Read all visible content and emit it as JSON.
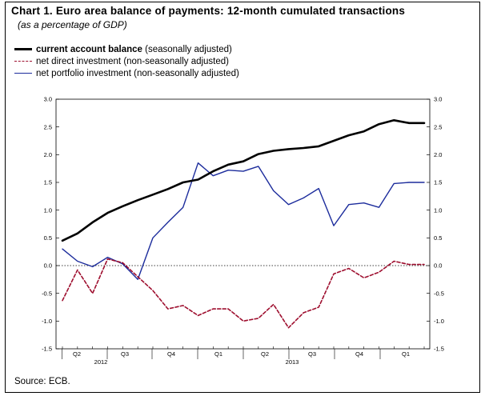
{
  "header": {
    "title": "Chart 1. Euro area balance of payments: 12-month cumulated transactions",
    "subtitle": "(as a percentage of GDP)"
  },
  "legend": {
    "items": [
      {
        "name": "current account balance",
        "note": "(seasonally adjusted)"
      },
      {
        "name": "net direct investment",
        "note": "(non-seasonally adjusted)"
      },
      {
        "name": "net portfolio investment",
        "note": "(non-seasonally adjusted)"
      }
    ]
  },
  "footer": {
    "source": "Source: ECB."
  },
  "chart_data": {
    "type": "line",
    "ylim": [
      -1.5,
      3.0
    ],
    "y_ticks": [
      "3.0",
      "2.5",
      "2.0",
      "1.5",
      "1.0",
      "0.5",
      "0.0",
      "-0.5",
      "-1.0",
      "-1.5"
    ],
    "x_tick_labels": [
      "Q2",
      "Q3",
      "Q4",
      "Q1",
      "Q2",
      "Q3",
      "Q4",
      "Q1"
    ],
    "x_year_labels": [
      "2012",
      "2013"
    ],
    "x": [
      "2012-03",
      "2012-04",
      "2012-05",
      "2012-06",
      "2012-07",
      "2012-08",
      "2012-09",
      "2012-10",
      "2012-11",
      "2012-12",
      "2013-01",
      "2013-02",
      "2013-03",
      "2013-04",
      "2013-05",
      "2013-06",
      "2013-07",
      "2013-08",
      "2013-09",
      "2013-10",
      "2013-11",
      "2013-12",
      "2014-01",
      "2014-02",
      "2014-03"
    ],
    "series": [
      {
        "name": "current account balance",
        "color": "#000000",
        "values": [
          0.45,
          0.58,
          0.78,
          0.95,
          1.07,
          1.18,
          1.28,
          1.38,
          1.5,
          1.55,
          1.7,
          1.82,
          1.88,
          2.01,
          2.07,
          2.1,
          2.12,
          2.15,
          2.25,
          2.35,
          2.42,
          2.55,
          2.62,
          2.57,
          2.57
        ]
      },
      {
        "name": "net direct investment",
        "color": "#9e0e2e",
        "values": [
          -0.63,
          -0.08,
          -0.5,
          0.12,
          0.05,
          -0.2,
          -0.45,
          -0.78,
          -0.72,
          -0.9,
          -0.78,
          -0.78,
          -1.0,
          -0.95,
          -0.7,
          -1.12,
          -0.85,
          -0.75,
          -0.15,
          -0.05,
          -0.22,
          -0.12,
          0.08,
          0.02,
          0.02
        ]
      },
      {
        "name": "net portfolio investment",
        "color": "#1c2c9c",
        "values": [
          0.3,
          0.08,
          -0.02,
          0.15,
          0.03,
          -0.25,
          0.5,
          0.78,
          1.05,
          1.85,
          1.62,
          1.72,
          1.7,
          1.79,
          1.35,
          1.1,
          1.22,
          1.39,
          0.72,
          1.1,
          1.13,
          1.05,
          1.48,
          1.5,
          1.5
        ]
      }
    ],
    "reference_line": 0.0,
    "grid": false
  }
}
